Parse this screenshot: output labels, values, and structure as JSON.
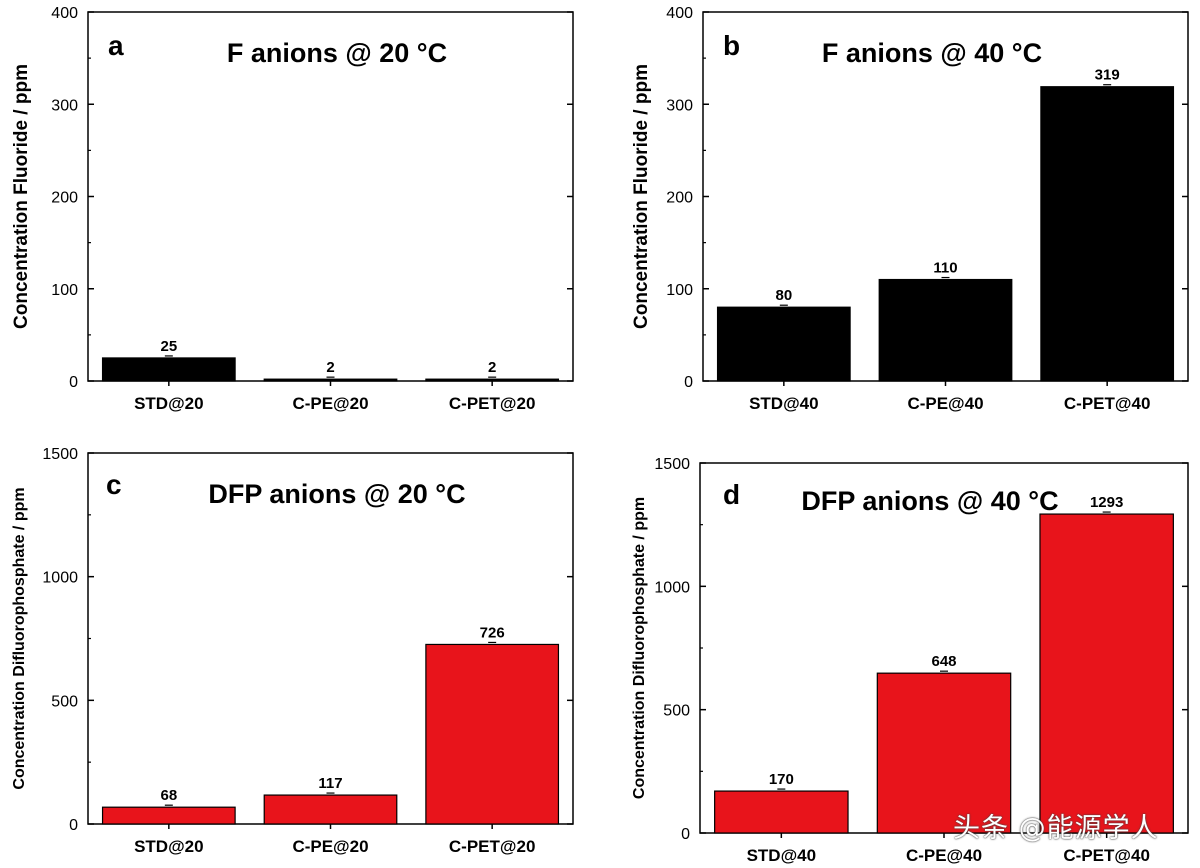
{
  "chart_data": [
    {
      "type": "bar",
      "panel": "a",
      "title": "F anions @ 20 °C",
      "ylabel": "Concentration Fluoride / ppm",
      "xlabel": "",
      "ylim": [
        0,
        400
      ],
      "yticks": [
        0,
        100,
        200,
        300,
        400
      ],
      "categories": [
        "STD@20",
        "C-PE@20",
        "C-PET@20"
      ],
      "values": [
        25,
        2,
        2
      ],
      "value_labels": [
        "25",
        "2",
        "2"
      ],
      "color": "#000000"
    },
    {
      "type": "bar",
      "panel": "b",
      "title": "F anions @ 40 °C",
      "ylabel": "Concentration Fluoride / ppm",
      "xlabel": "",
      "ylim": [
        0,
        400
      ],
      "yticks": [
        0,
        100,
        200,
        300,
        400
      ],
      "categories": [
        "STD@40",
        "C-PE@40",
        "C-PET@40"
      ],
      "values": [
        80,
        110,
        319
      ],
      "value_labels": [
        "80",
        "110",
        "319"
      ],
      "color": "#000000"
    },
    {
      "type": "bar",
      "panel": "c",
      "title": "DFP anions @ 20 °C",
      "ylabel": "Concentration Difluorophosphate / ppm",
      "xlabel": "",
      "ylim": [
        0,
        1500
      ],
      "yticks": [
        0,
        500,
        1000,
        1500
      ],
      "categories": [
        "STD@20",
        "C-PE@20",
        "C-PET@20"
      ],
      "values": [
        68,
        117,
        726
      ],
      "value_labels": [
        "68",
        "117",
        "726"
      ],
      "color": "#e8141b"
    },
    {
      "type": "bar",
      "panel": "d",
      "title": "DFP anions @ 40 °C",
      "ylabel": "Concentration Difluorophosphate / ppm",
      "xlabel": "",
      "ylim": [
        0,
        1500
      ],
      "yticks": [
        0,
        500,
        1000,
        1500
      ],
      "categories": [
        "STD@40",
        "C-PE@40",
        "C-PET@40"
      ],
      "values": [
        170,
        648,
        1293
      ],
      "value_labels": [
        "170",
        "648",
        "1293"
      ],
      "color": "#e8141b"
    }
  ],
  "watermark": "头条 @能源学人"
}
